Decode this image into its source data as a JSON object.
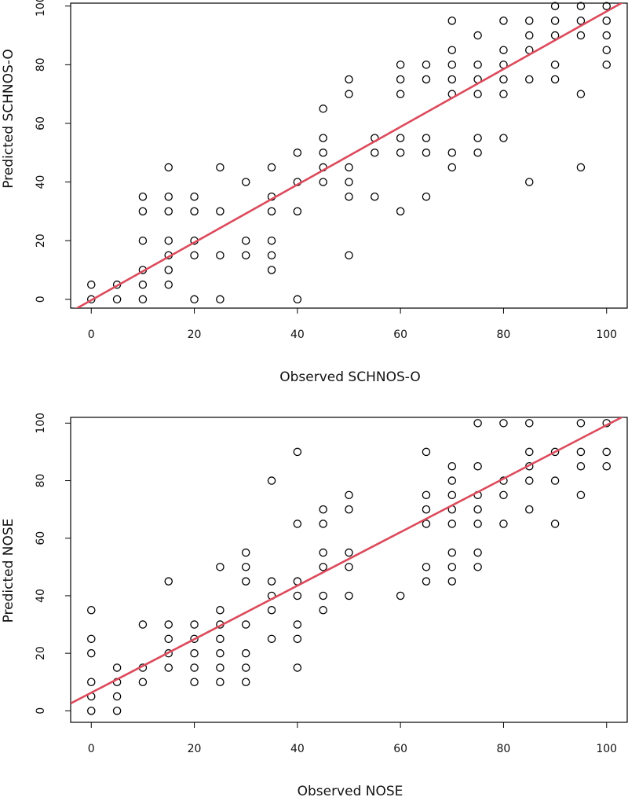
{
  "chart_data": [
    {
      "type": "scatter",
      "xlabel": "Observed SCHNOS-O",
      "ylabel": "Predicted SCHNOS-O",
      "xticks": [
        "0",
        "20",
        "40",
        "60",
        "80",
        "100"
      ],
      "yticks": [
        "0",
        "20",
        "40",
        "60",
        "80",
        "100"
      ],
      "xlim": [
        -4,
        104
      ],
      "ylim": [
        -3,
        101
      ],
      "fit_line": {
        "intercept": -0.3,
        "slope": 0.985,
        "color": "#dc4b5c"
      },
      "points": [
        [
          0,
          0
        ],
        [
          0,
          5
        ],
        [
          5,
          0
        ],
        [
          5,
          5
        ],
        [
          10,
          0
        ],
        [
          10,
          5
        ],
        [
          10,
          10
        ],
        [
          10,
          20
        ],
        [
          10,
          30
        ],
        [
          10,
          35
        ],
        [
          15,
          5
        ],
        [
          15,
          10
        ],
        [
          15,
          15
        ],
        [
          15,
          20
        ],
        [
          15,
          30
        ],
        [
          15,
          35
        ],
        [
          15,
          45
        ],
        [
          20,
          0
        ],
        [
          20,
          15
        ],
        [
          20,
          20
        ],
        [
          20,
          30
        ],
        [
          20,
          35
        ],
        [
          25,
          0
        ],
        [
          25,
          15
        ],
        [
          25,
          30
        ],
        [
          25,
          45
        ],
        [
          30,
          15
        ],
        [
          30,
          20
        ],
        [
          30,
          40
        ],
        [
          35,
          10
        ],
        [
          35,
          15
        ],
        [
          35,
          20
        ],
        [
          35,
          30
        ],
        [
          35,
          35
        ],
        [
          35,
          45
        ],
        [
          40,
          0
        ],
        [
          40,
          30
        ],
        [
          40,
          40
        ],
        [
          40,
          50
        ],
        [
          45,
          40
        ],
        [
          45,
          45
        ],
        [
          45,
          50
        ],
        [
          45,
          55
        ],
        [
          45,
          65
        ],
        [
          50,
          15
        ],
        [
          50,
          35
        ],
        [
          50,
          40
        ],
        [
          50,
          45
        ],
        [
          50,
          70
        ],
        [
          50,
          75
        ],
        [
          55,
          35
        ],
        [
          55,
          50
        ],
        [
          55,
          55
        ],
        [
          60,
          30
        ],
        [
          60,
          50
        ],
        [
          60,
          55
        ],
        [
          60,
          70
        ],
        [
          60,
          75
        ],
        [
          60,
          80
        ],
        [
          65,
          35
        ],
        [
          65,
          50
        ],
        [
          65,
          55
        ],
        [
          65,
          75
        ],
        [
          65,
          80
        ],
        [
          70,
          45
        ],
        [
          70,
          50
        ],
        [
          70,
          70
        ],
        [
          70,
          75
        ],
        [
          70,
          80
        ],
        [
          70,
          85
        ],
        [
          70,
          95
        ],
        [
          75,
          50
        ],
        [
          75,
          55
        ],
        [
          75,
          70
        ],
        [
          75,
          75
        ],
        [
          75,
          80
        ],
        [
          75,
          90
        ],
        [
          80,
          55
        ],
        [
          80,
          70
        ],
        [
          80,
          75
        ],
        [
          80,
          80
        ],
        [
          80,
          85
        ],
        [
          80,
          95
        ],
        [
          85,
          40
        ],
        [
          85,
          75
        ],
        [
          85,
          85
        ],
        [
          85,
          90
        ],
        [
          85,
          95
        ],
        [
          90,
          75
        ],
        [
          90,
          80
        ],
        [
          90,
          90
        ],
        [
          90,
          95
        ],
        [
          90,
          100
        ],
        [
          95,
          45
        ],
        [
          95,
          70
        ],
        [
          95,
          90
        ],
        [
          95,
          95
        ],
        [
          95,
          100
        ],
        [
          100,
          80
        ],
        [
          100,
          85
        ],
        [
          100,
          90
        ],
        [
          100,
          95
        ],
        [
          100,
          100
        ]
      ]
    },
    {
      "type": "scatter",
      "xlabel": "Observed NOSE",
      "ylabel": "Predicted NOSE",
      "xticks": [
        "0",
        "20",
        "40",
        "60",
        "80",
        "100"
      ],
      "yticks": [
        "0",
        "20",
        "40",
        "60",
        "80",
        "100"
      ],
      "xlim": [
        -4,
        104
      ],
      "ylim": [
        -4,
        102
      ],
      "fit_line": {
        "intercept": 6.3,
        "slope": 0.93,
        "color": "#dc4b5c"
      },
      "points": [
        [
          0,
          0
        ],
        [
          0,
          5
        ],
        [
          0,
          10
        ],
        [
          0,
          20
        ],
        [
          0,
          25
        ],
        [
          0,
          35
        ],
        [
          5,
          0
        ],
        [
          5,
          5
        ],
        [
          5,
          10
        ],
        [
          5,
          15
        ],
        [
          10,
          10
        ],
        [
          10,
          15
        ],
        [
          10,
          30
        ],
        [
          15,
          15
        ],
        [
          15,
          20
        ],
        [
          15,
          25
        ],
        [
          15,
          30
        ],
        [
          15,
          45
        ],
        [
          20,
          10
        ],
        [
          20,
          15
        ],
        [
          20,
          20
        ],
        [
          20,
          25
        ],
        [
          20,
          30
        ],
        [
          25,
          10
        ],
        [
          25,
          15
        ],
        [
          25,
          20
        ],
        [
          25,
          25
        ],
        [
          25,
          30
        ],
        [
          25,
          35
        ],
        [
          25,
          50
        ],
        [
          30,
          10
        ],
        [
          30,
          15
        ],
        [
          30,
          20
        ],
        [
          30,
          30
        ],
        [
          30,
          45
        ],
        [
          30,
          50
        ],
        [
          30,
          55
        ],
        [
          35,
          25
        ],
        [
          35,
          35
        ],
        [
          35,
          40
        ],
        [
          35,
          45
        ],
        [
          35,
          80
        ],
        [
          40,
          15
        ],
        [
          40,
          25
        ],
        [
          40,
          30
        ],
        [
          40,
          40
        ],
        [
          40,
          45
        ],
        [
          40,
          65
        ],
        [
          40,
          90
        ],
        [
          45,
          35
        ],
        [
          45,
          40
        ],
        [
          45,
          50
        ],
        [
          45,
          55
        ],
        [
          45,
          65
        ],
        [
          45,
          70
        ],
        [
          50,
          40
        ],
        [
          50,
          50
        ],
        [
          50,
          55
        ],
        [
          50,
          70
        ],
        [
          50,
          75
        ],
        [
          60,
          40
        ],
        [
          65,
          45
        ],
        [
          65,
          50
        ],
        [
          65,
          65
        ],
        [
          65,
          70
        ],
        [
          65,
          75
        ],
        [
          65,
          90
        ],
        [
          70,
          45
        ],
        [
          70,
          50
        ],
        [
          70,
          55
        ],
        [
          70,
          65
        ],
        [
          70,
          70
        ],
        [
          70,
          75
        ],
        [
          70,
          80
        ],
        [
          70,
          85
        ],
        [
          75,
          50
        ],
        [
          75,
          55
        ],
        [
          75,
          65
        ],
        [
          75,
          70
        ],
        [
          75,
          75
        ],
        [
          75,
          85
        ],
        [
          75,
          100
        ],
        [
          80,
          65
        ],
        [
          80,
          75
        ],
        [
          80,
          80
        ],
        [
          80,
          100
        ],
        [
          85,
          70
        ],
        [
          85,
          80
        ],
        [
          85,
          85
        ],
        [
          85,
          90
        ],
        [
          85,
          100
        ],
        [
          90,
          65
        ],
        [
          90,
          80
        ],
        [
          90,
          90
        ],
        [
          95,
          75
        ],
        [
          95,
          85
        ],
        [
          95,
          90
        ],
        [
          95,
          100
        ],
        [
          100,
          85
        ],
        [
          100,
          90
        ],
        [
          100,
          100
        ]
      ]
    }
  ]
}
